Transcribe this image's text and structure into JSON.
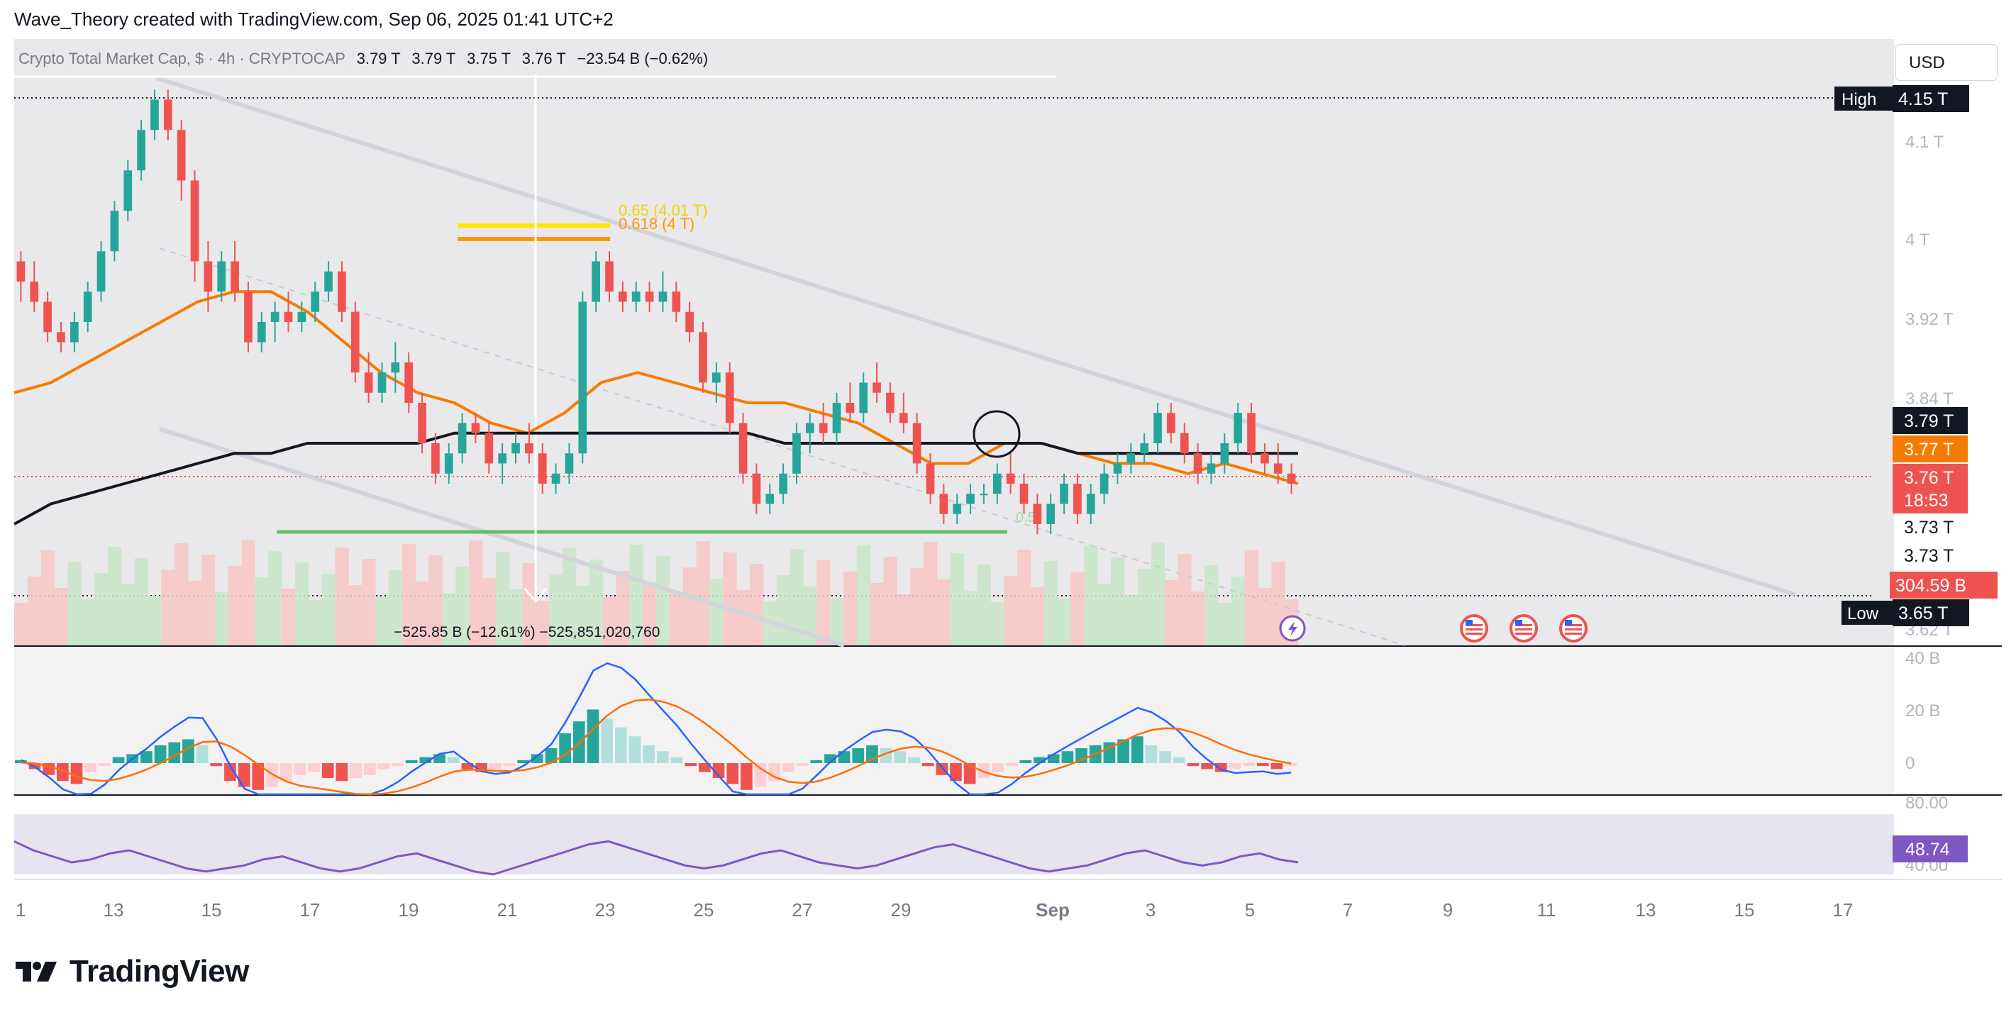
{
  "attribution": "Wave_Theory created with TradingView.com, Sep 06, 2025 01:41 UTC+2",
  "brand": {
    "name": "TradingView",
    "logo": "tradingview-logo-icon"
  },
  "currency_button": "USD",
  "legend": {
    "symbol": "Crypto Total Market Cap, $ · 4h · CRYPTOCAP",
    "open": "3.79 T",
    "high": "3.79 T",
    "low": "3.75 T",
    "close": "3.76 T",
    "change": "−23.54 B (−0.62%)"
  },
  "colors": {
    "up": "#26a69a",
    "down": "#ef5350",
    "ema_orange": "#f57c00",
    "ema_black": "#131722",
    "trendline": "#d1d4dc",
    "fib_yellow": "#ffe600",
    "fib_orange": "#ff9800",
    "support": "#4caf50",
    "macd": "#2962ff",
    "signal": "#ff6d00",
    "rsi": "#7e57c2"
  },
  "chart_data": {
    "type": "candlestick",
    "timeframe": "4h",
    "main_pane": {
      "ylim": [
        3.6,
        4.2
      ],
      "tick_labels": [
        "4.1 T",
        "4 T",
        "3.92 T",
        "3.84 T",
        "3.62 T"
      ],
      "series": [
        {
          "name": "Candles (4h)",
          "x_start_date": "2025-08-11",
          "ohlc": [
            [
              3.98,
              3.99,
              3.94,
              3.96
            ],
            [
              3.96,
              3.98,
              3.93,
              3.94
            ],
            [
              3.94,
              3.95,
              3.9,
              3.91
            ],
            [
              3.91,
              3.92,
              3.89,
              3.9
            ],
            [
              3.9,
              3.93,
              3.89,
              3.92
            ],
            [
              3.92,
              3.96,
              3.91,
              3.95
            ],
            [
              3.95,
              4.0,
              3.94,
              3.99
            ],
            [
              3.99,
              4.04,
              3.98,
              4.03
            ],
            [
              4.03,
              4.08,
              4.02,
              4.07
            ],
            [
              4.07,
              4.12,
              4.06,
              4.11
            ],
            [
              4.11,
              4.15,
              4.1,
              4.14
            ],
            [
              4.14,
              4.15,
              4.1,
              4.11
            ],
            [
              4.11,
              4.12,
              4.04,
              4.06
            ],
            [
              4.06,
              4.07,
              3.96,
              3.98
            ],
            [
              3.98,
              4.0,
              3.93,
              3.95
            ],
            [
              3.95,
              3.99,
              3.94,
              3.98
            ],
            [
              3.98,
              4.0,
              3.94,
              3.95
            ],
            [
              3.95,
              3.96,
              3.89,
              3.9
            ],
            [
              3.9,
              3.93,
              3.89,
              3.92
            ],
            [
              3.92,
              3.94,
              3.9,
              3.93
            ],
            [
              3.93,
              3.95,
              3.91,
              3.92
            ],
            [
              3.92,
              3.94,
              3.91,
              3.93
            ],
            [
              3.93,
              3.96,
              3.92,
              3.95
            ],
            [
              3.95,
              3.98,
              3.94,
              3.97
            ],
            [
              3.97,
              3.98,
              3.92,
              3.93
            ],
            [
              3.93,
              3.94,
              3.86,
              3.87
            ],
            [
              3.87,
              3.89,
              3.84,
              3.85
            ],
            [
              3.85,
              3.88,
              3.84,
              3.87
            ],
            [
              3.87,
              3.9,
              3.85,
              3.88
            ],
            [
              3.88,
              3.89,
              3.83,
              3.84
            ],
            [
              3.84,
              3.85,
              3.79,
              3.8
            ],
            [
              3.8,
              3.81,
              3.76,
              3.77
            ],
            [
              3.77,
              3.8,
              3.76,
              3.79
            ],
            [
              3.79,
              3.83,
              3.78,
              3.82
            ],
            [
              3.82,
              3.83,
              3.8,
              3.81
            ],
            [
              3.81,
              3.82,
              3.77,
              3.78
            ],
            [
              3.78,
              3.8,
              3.76,
              3.79
            ],
            [
              3.79,
              3.81,
              3.78,
              3.8
            ],
            [
              3.8,
              3.82,
              3.78,
              3.79
            ],
            [
              3.79,
              3.8,
              3.75,
              3.76
            ],
            [
              3.76,
              3.78,
              3.75,
              3.77
            ],
            [
              3.77,
              3.8,
              3.76,
              3.79
            ],
            [
              3.79,
              3.95,
              3.78,
              3.94
            ],
            [
              3.94,
              3.99,
              3.93,
              3.98
            ],
            [
              3.98,
              3.99,
              3.94,
              3.95
            ],
            [
              3.95,
              3.96,
              3.93,
              3.94
            ],
            [
              3.94,
              3.96,
              3.93,
              3.95
            ],
            [
              3.95,
              3.96,
              3.93,
              3.94
            ],
            [
              3.94,
              3.97,
              3.93,
              3.95
            ],
            [
              3.95,
              3.96,
              3.92,
              3.93
            ],
            [
              3.93,
              3.94,
              3.9,
              3.91
            ],
            [
              3.91,
              3.92,
              3.85,
              3.86
            ],
            [
              3.86,
              3.88,
              3.84,
              3.87
            ],
            [
              3.87,
              3.88,
              3.81,
              3.82
            ],
            [
              3.82,
              3.83,
              3.76,
              3.77
            ],
            [
              3.77,
              3.78,
              3.73,
              3.74
            ],
            [
              3.74,
              3.76,
              3.73,
              3.75
            ],
            [
              3.75,
              3.78,
              3.74,
              3.77
            ],
            [
              3.77,
              3.82,
              3.76,
              3.81
            ],
            [
              3.81,
              3.83,
              3.79,
              3.82
            ],
            [
              3.82,
              3.84,
              3.8,
              3.81
            ],
            [
              3.81,
              3.85,
              3.8,
              3.84
            ],
            [
              3.84,
              3.86,
              3.82,
              3.83
            ],
            [
              3.83,
              3.87,
              3.82,
              3.86
            ],
            [
              3.86,
              3.88,
              3.84,
              3.85
            ],
            [
              3.85,
              3.86,
              3.82,
              3.83
            ],
            [
              3.83,
              3.85,
              3.81,
              3.82
            ],
            [
              3.82,
              3.83,
              3.77,
              3.78
            ],
            [
              3.78,
              3.79,
              3.74,
              3.75
            ],
            [
              3.75,
              3.76,
              3.72,
              3.73
            ],
            [
              3.73,
              3.75,
              3.72,
              3.74
            ],
            [
              3.74,
              3.76,
              3.73,
              3.75
            ],
            [
              3.75,
              3.76,
              3.74,
              3.75
            ],
            [
              3.75,
              3.78,
              3.74,
              3.77
            ],
            [
              3.77,
              3.79,
              3.75,
              3.76
            ],
            [
              3.76,
              3.77,
              3.73,
              3.74
            ],
            [
              3.74,
              3.75,
              3.71,
              3.72
            ],
            [
              3.72,
              3.75,
              3.71,
              3.74
            ],
            [
              3.74,
              3.77,
              3.73,
              3.76
            ],
            [
              3.76,
              3.77,
              3.72,
              3.73
            ],
            [
              3.73,
              3.76,
              3.72,
              3.75
            ],
            [
              3.75,
              3.78,
              3.74,
              3.77
            ],
            [
              3.77,
              3.79,
              3.76,
              3.78
            ],
            [
              3.78,
              3.8,
              3.77,
              3.79
            ],
            [
              3.79,
              3.81,
              3.78,
              3.8
            ],
            [
              3.8,
              3.84,
              3.79,
              3.83
            ],
            [
              3.83,
              3.84,
              3.8,
              3.81
            ],
            [
              3.81,
              3.82,
              3.78,
              3.79
            ],
            [
              3.79,
              3.8,
              3.76,
              3.77
            ],
            [
              3.77,
              3.79,
              3.76,
              3.78
            ],
            [
              3.78,
              3.81,
              3.77,
              3.8
            ],
            [
              3.8,
              3.84,
              3.79,
              3.83
            ],
            [
              3.83,
              3.84,
              3.78,
              3.79
            ],
            [
              3.79,
              3.8,
              3.77,
              3.78
            ],
            [
              3.78,
              3.8,
              3.76,
              3.77
            ],
            [
              3.77,
              3.78,
              3.75,
              3.76
            ]
          ]
        },
        {
          "name": "EMA (orange)",
          "values": [
            3.85,
            3.86,
            3.88,
            3.9,
            3.92,
            3.94,
            3.95,
            3.95,
            3.93,
            3.9,
            3.87,
            3.85,
            3.84,
            3.82,
            3.81,
            3.83,
            3.86,
            3.87,
            3.86,
            3.85,
            3.84,
            3.84,
            3.83,
            3.82,
            3.8,
            3.78,
            3.78,
            3.8,
            3.8,
            3.79,
            3.78,
            3.78,
            3.77,
            3.78,
            3.77,
            3.76
          ]
        },
        {
          "name": "EMA (black)",
          "values": [
            3.72,
            3.74,
            3.75,
            3.76,
            3.77,
            3.78,
            3.79,
            3.79,
            3.8,
            3.8,
            3.8,
            3.8,
            3.81,
            3.81,
            3.81,
            3.81,
            3.81,
            3.81,
            3.81,
            3.81,
            3.81,
            3.8,
            3.8,
            3.8,
            3.8,
            3.8,
            3.8,
            3.8,
            3.8,
            3.79,
            3.79,
            3.79,
            3.79,
            3.79,
            3.79,
            3.79
          ]
        }
      ]
    },
    "price_labels": [
      {
        "text": "High",
        "value": "4.15 T"
      },
      {
        "value": "3.79 T"
      },
      {
        "value": "3.77 T"
      },
      {
        "value": "3.76 T",
        "countdown": "18:53"
      },
      {
        "value": "3.73 T"
      },
      {
        "value": "3.73 T"
      },
      {
        "value": "304.59 B"
      },
      {
        "text": "Low",
        "value": "3.65 T"
      }
    ],
    "annotations": {
      "fib_065": "0.65 (4.01 T)",
      "fib_0618": "0.618 (4 T)",
      "fib_lower": "0.5",
      "measure": "−525.85 B (−12.61%) −525,851,020,760"
    },
    "macd_pane": {
      "tick_labels": [
        "40 B",
        "20 B",
        "0"
      ],
      "histogram": [
        1,
        -2,
        -4,
        -6,
        -7,
        -3,
        -1,
        2,
        3,
        4,
        6,
        7,
        8,
        6,
        -1,
        -6,
        -8,
        -9,
        -8,
        -6,
        -4,
        -3,
        -5,
        -6,
        -5,
        -4,
        -2,
        -1,
        1,
        2,
        3,
        2,
        -2,
        -3,
        -2,
        -1,
        1,
        3,
        5,
        10,
        14,
        18,
        15,
        12,
        9,
        6,
        4,
        2,
        -1,
        -3,
        -5,
        -7,
        -9,
        -8,
        -6,
        -3,
        -1,
        1,
        3,
        4,
        5,
        6,
        5,
        4,
        2,
        -1,
        -4,
        -6,
        -7,
        -5,
        -3,
        -1,
        1,
        2,
        3,
        4,
        5,
        6,
        7,
        8,
        9,
        6,
        4,
        2,
        -1,
        -2,
        -3,
        -2,
        -1,
        -1,
        -2,
        -1
      ]
    },
    "rsi_pane": {
      "tick_labels": [
        "80.00",
        "40.00"
      ],
      "value_label": "48.74",
      "values": [
        62,
        56,
        52,
        48,
        50,
        54,
        56,
        52,
        48,
        44,
        42,
        44,
        46,
        50,
        52,
        48,
        44,
        42,
        44,
        48,
        52,
        54,
        50,
        46,
        42,
        40,
        44,
        48,
        52,
        56,
        60,
        62,
        58,
        54,
        50,
        46,
        44,
        46,
        50,
        54,
        56,
        52,
        48,
        46,
        44,
        46,
        50,
        54,
        58,
        60,
        56,
        52,
        48,
        44,
        42,
        44,
        46,
        50,
        54,
        56,
        52,
        48,
        46,
        48,
        52,
        54,
        50,
        48
      ]
    },
    "x_tick_labels": [
      "1",
      "13",
      "15",
      "17",
      "19",
      "21",
      "23",
      "25",
      "27",
      "29",
      "Sep",
      "3",
      "5",
      "7",
      "9",
      "11",
      "13",
      "15",
      "17"
    ]
  }
}
